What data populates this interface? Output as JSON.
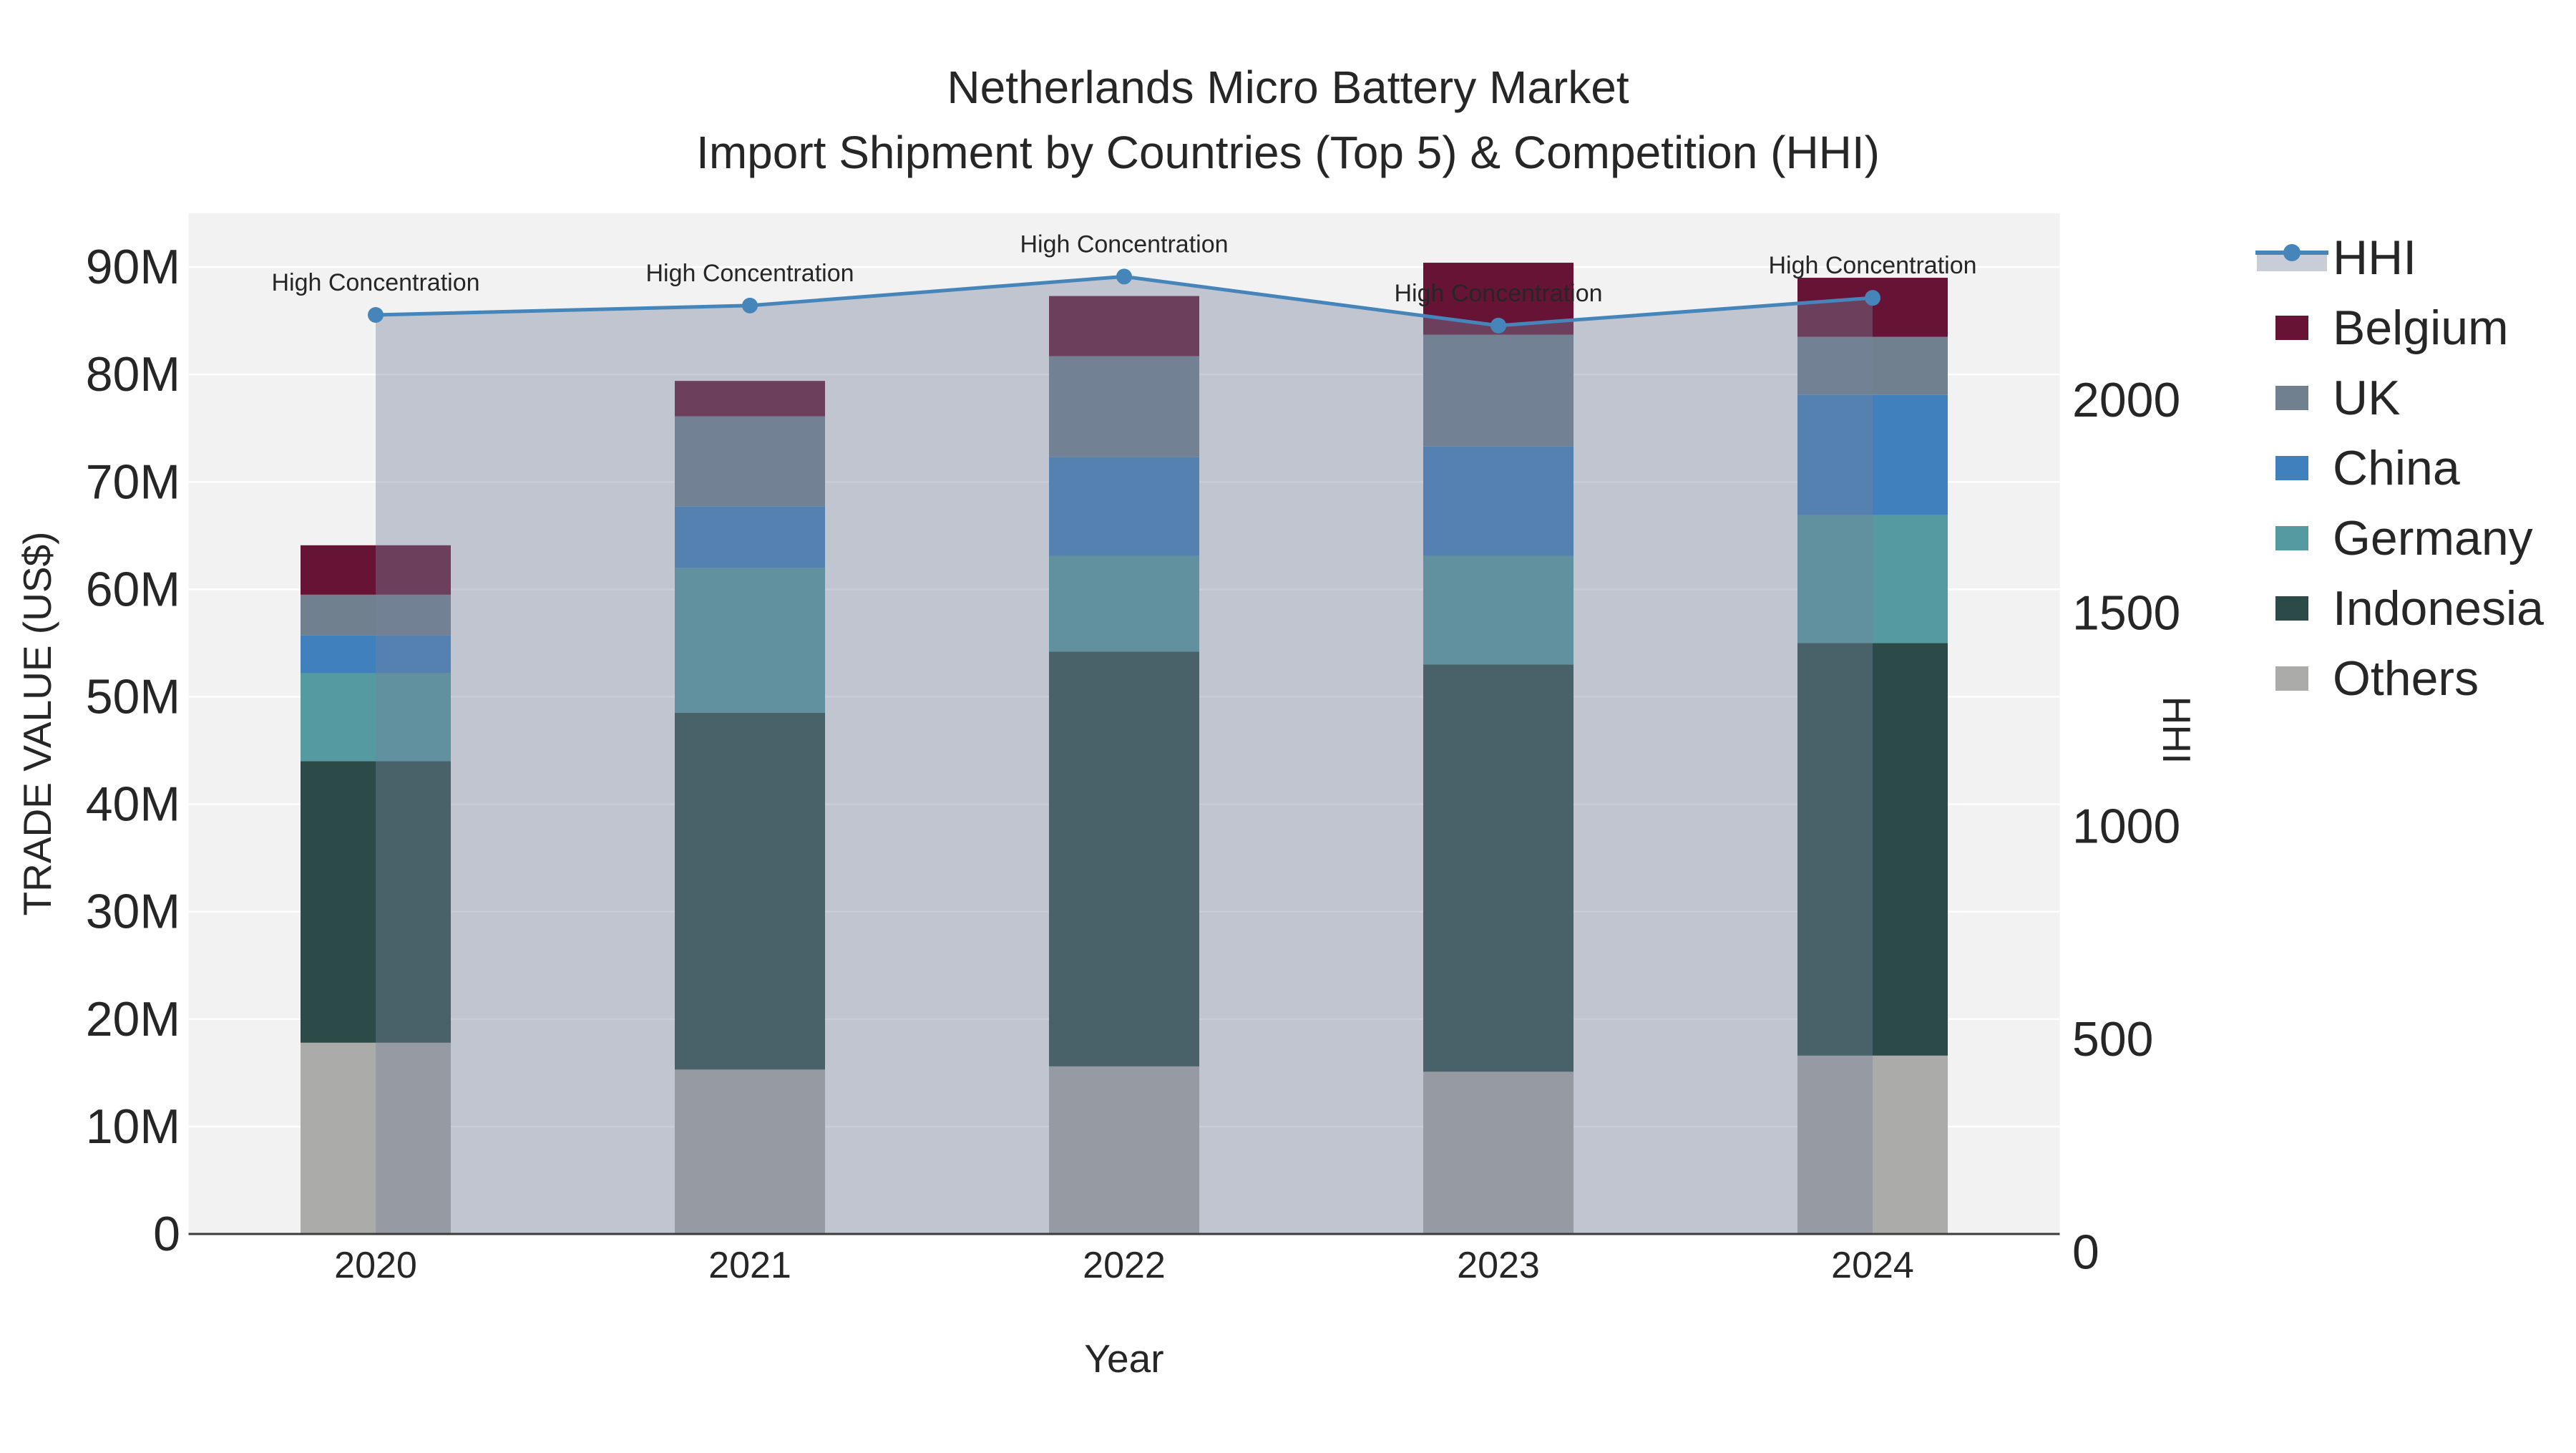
{
  "title": {
    "line1": "Netherlands Micro Battery Market",
    "line2": "Import Shipment by Countries (Top 5) & Competition (HHI)"
  },
  "axes": {
    "x": {
      "title": "Year"
    },
    "y_left": {
      "title": "TRADE VALUE (US$)",
      "tick_labels": [
        "0",
        "10M",
        "20M",
        "30M",
        "40M",
        "50M",
        "60M",
        "70M",
        "80M",
        "90M"
      ],
      "tick_values": [
        0,
        10,
        20,
        30,
        40,
        50,
        60,
        70,
        80,
        90
      ],
      "range": [
        0,
        95
      ]
    },
    "y_right": {
      "title": "HHI",
      "tick_labels": [
        "0",
        "500",
        "1000",
        "1500",
        "2000"
      ],
      "tick_values": [
        0,
        500,
        1000,
        1500,
        2000
      ]
    }
  },
  "chart_data": {
    "type": "bar+line",
    "subtype": "stacked-bar with secondary-axis line and area fill",
    "categories": [
      "2020",
      "2021",
      "2022",
      "2023",
      "2024"
    ],
    "stack_order_bottom_to_top": [
      "Others",
      "Indonesia",
      "Germany",
      "China",
      "UK",
      "Belgium"
    ],
    "series": [
      {
        "name": "Others",
        "color": "#ABABA9",
        "values": [
          17.8,
          15.3,
          15.6,
          15.1,
          16.6
        ]
      },
      {
        "name": "Indonesia",
        "color": "#2C4B48",
        "values": [
          26.2,
          33.2,
          38.6,
          37.9,
          38.4
        ]
      },
      {
        "name": "Germany",
        "color": "#549AA0",
        "values": [
          8.2,
          13.5,
          8.9,
          10.1,
          11.9
        ]
      },
      {
        "name": "China",
        "color": "#3F80BD",
        "values": [
          3.5,
          5.7,
          9.2,
          10.2,
          11.2
        ]
      },
      {
        "name": "UK",
        "color": "#70808F",
        "values": [
          3.8,
          8.4,
          9.4,
          10.4,
          5.4
        ]
      },
      {
        "name": "Belgium",
        "color": "#661335",
        "values": [
          4.6,
          3.3,
          5.6,
          6.7,
          5.5
        ]
      }
    ],
    "bar_totals": [
      64.1,
      79.4,
      87.3,
      90.4,
      89.0
    ],
    "value_unit": "M US$",
    "hhi_line": {
      "name": "HHI",
      "color": "#4685BA",
      "fill_color": "rgba(118,130,155,0.40)",
      "values": [
        2200,
        2222,
        2290,
        2175,
        2240
      ],
      "axis": "right"
    },
    "annotations": [
      {
        "text": "High Concentration",
        "category": "2020"
      },
      {
        "text": "High Concentration",
        "category": "2021"
      },
      {
        "text": "High Concentration",
        "category": "2022"
      },
      {
        "text": "High Concentration",
        "category": "2023"
      },
      {
        "text": "High Concentration",
        "category": "2024"
      }
    ],
    "layout_hints": {
      "plot_bg": "#F2F2F2",
      "grid_color": "#FFFFFF",
      "axis_line_color": "#3C3C3C",
      "legend_position": "right",
      "grid_on": true
    }
  },
  "legend": {
    "items": [
      {
        "label": "HHI",
        "color": "#4685BA",
        "swatch": "line"
      },
      {
        "label": "Belgium",
        "color": "#661335",
        "swatch": "rect"
      },
      {
        "label": "UK",
        "color": "#70808F",
        "swatch": "rect"
      },
      {
        "label": "China",
        "color": "#3F80BD",
        "swatch": "rect"
      },
      {
        "label": "Germany",
        "color": "#549AA0",
        "swatch": "rect"
      },
      {
        "label": "Indonesia",
        "color": "#2C4B48",
        "swatch": "rect"
      },
      {
        "label": "Others",
        "color": "#ABABA9",
        "swatch": "rect"
      }
    ]
  }
}
